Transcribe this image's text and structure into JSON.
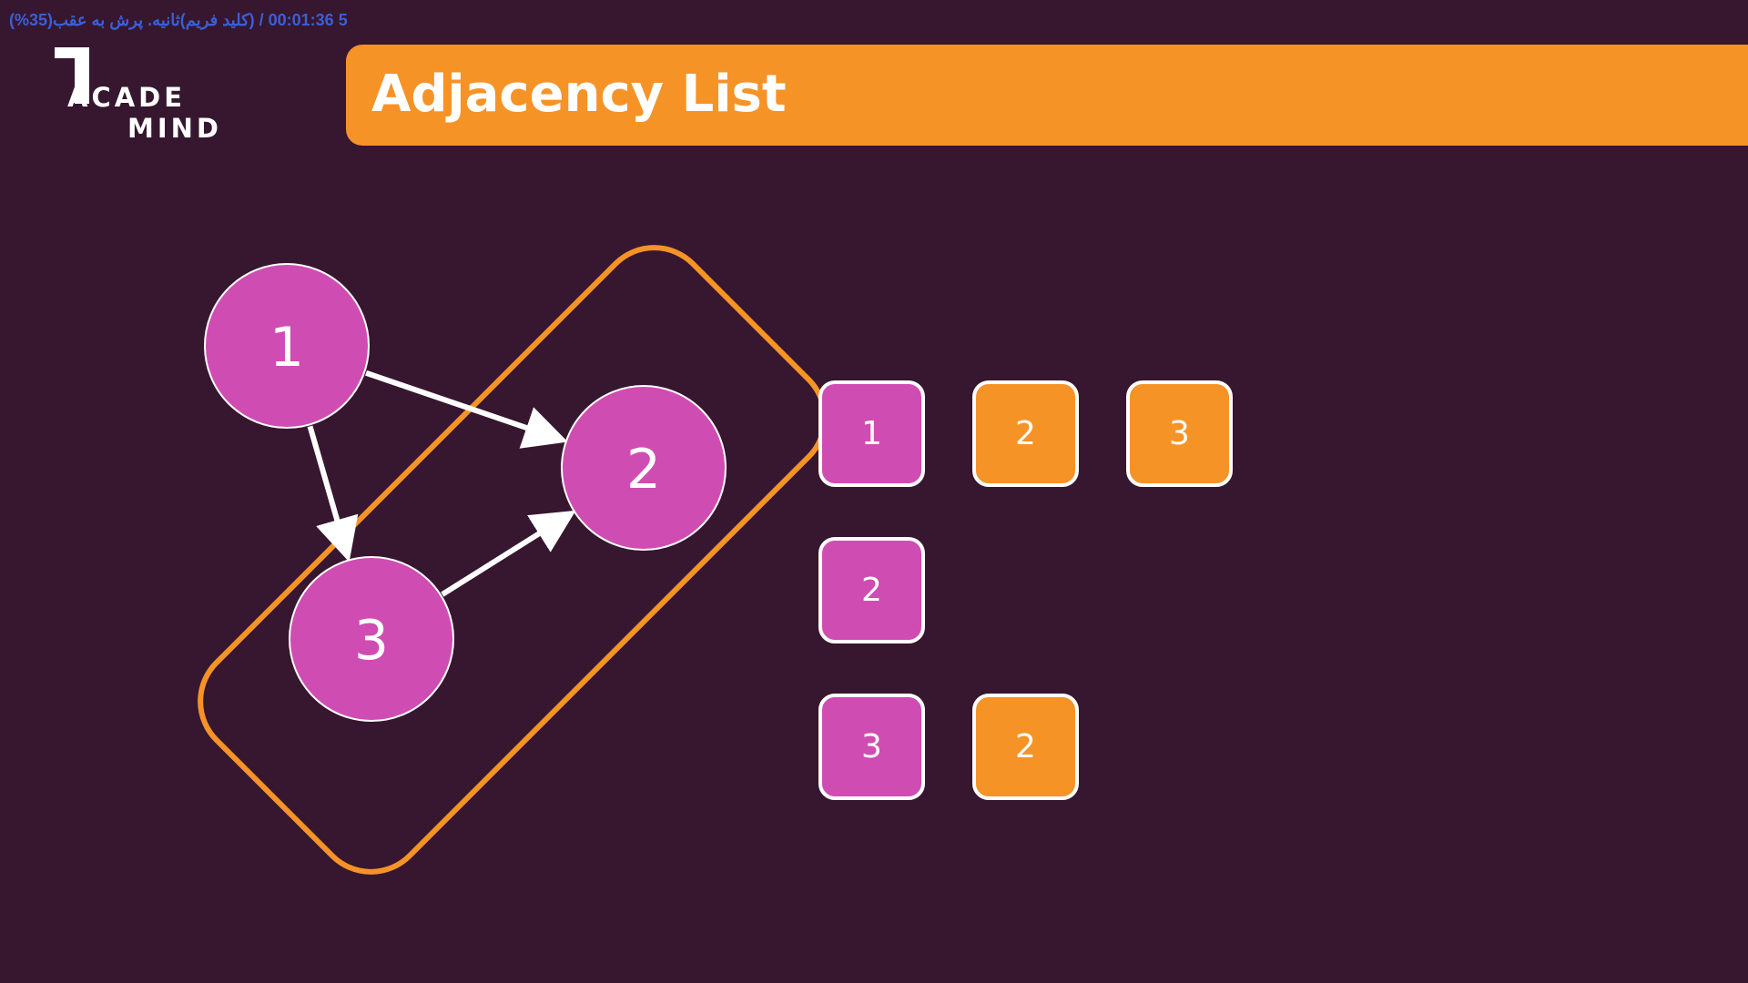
{
  "overlay": {
    "text": "5 00:01:36 / (کلید فریم)ثانیه. پرش به عقب(35%)"
  },
  "logo": {
    "line1": "ACADE",
    "line2": "MIND"
  },
  "title": "Adjacency List",
  "colors": {
    "background": "#36172f",
    "accent": "#f69327",
    "node": "#cf4db3",
    "edge": "#ffffff"
  },
  "graph": {
    "nodes": [
      {
        "id": "1",
        "label": "1"
      },
      {
        "id": "2",
        "label": "2"
      },
      {
        "id": "3",
        "label": "3"
      }
    ],
    "edges": [
      {
        "from": "1",
        "to": "2"
      },
      {
        "from": "1",
        "to": "3"
      },
      {
        "from": "3",
        "to": "2"
      }
    ],
    "highlighted_nodes": [
      "3",
      "2"
    ]
  },
  "adjacency_list": [
    {
      "head": "1",
      "neighbors": [
        "2",
        "3"
      ]
    },
    {
      "head": "2",
      "neighbors": []
    },
    {
      "head": "3",
      "neighbors": [
        "2"
      ]
    }
  ]
}
